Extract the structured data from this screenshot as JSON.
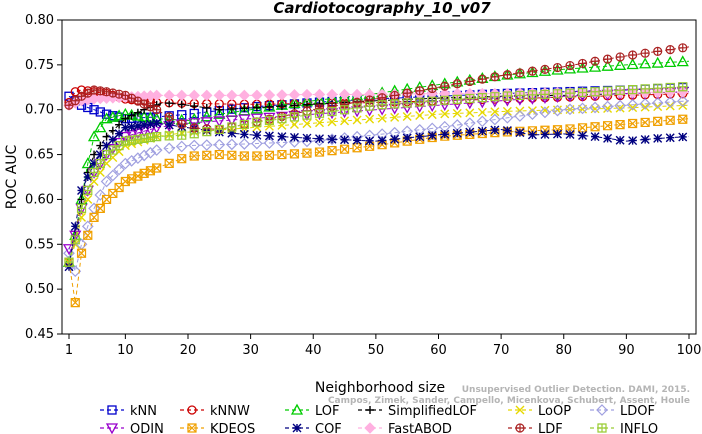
{
  "chart_data": {
    "type": "line",
    "title": "Cardiotocography_10_v07",
    "xlabel": "Neighborhood size",
    "ylabel": "ROC AUC",
    "xlim": [
      1,
      100
    ],
    "ylim": [
      0.45,
      0.8
    ],
    "x_ticks": [
      1,
      10,
      20,
      30,
      40,
      50,
      60,
      70,
      80,
      90,
      100
    ],
    "y_ticks": [
      "0.45",
      "0.50",
      "0.55",
      "0.60",
      "0.65",
      "0.70",
      "0.75",
      "0.80"
    ],
    "credit_line1": "Unsupervised Outlier Detection. DAMI, 2015.",
    "credit_line2": "Campos, Zimek, Sander, Campello, Micenkova, Schubert, Assent, Houle",
    "series": [
      {
        "name": "kNN",
        "color": "#0000cc",
        "marker": "square",
        "dash": "4,3",
        "points": [
          [
            1,
            0.715
          ],
          [
            2,
            0.71
          ],
          [
            3,
            0.705
          ],
          [
            5,
            0.7
          ],
          [
            7,
            0.695
          ],
          [
            10,
            0.69
          ],
          [
            15,
            0.692
          ],
          [
            20,
            0.695
          ],
          [
            30,
            0.703
          ],
          [
            40,
            0.708
          ],
          [
            50,
            0.712
          ],
          [
            60,
            0.715
          ],
          [
            70,
            0.718
          ],
          [
            80,
            0.72
          ],
          [
            90,
            0.722
          ],
          [
            100,
            0.725
          ]
        ]
      },
      {
        "name": "kNNW",
        "color": "#cc0000",
        "marker": "circle",
        "dash": "4,3",
        "points": [
          [
            1,
            0.708
          ],
          [
            2,
            0.72
          ],
          [
            3,
            0.722
          ],
          [
            5,
            0.72
          ],
          [
            7,
            0.718
          ],
          [
            10,
            0.712
          ],
          [
            15,
            0.708
          ],
          [
            20,
            0.707
          ],
          [
            30,
            0.706
          ],
          [
            40,
            0.707
          ],
          [
            50,
            0.708
          ],
          [
            60,
            0.71
          ],
          [
            70,
            0.712
          ],
          [
            80,
            0.714
          ],
          [
            90,
            0.716
          ],
          [
            100,
            0.718
          ]
        ]
      },
      {
        "name": "LOF",
        "color": "#00cc00",
        "marker": "triangle-up",
        "dash": "4,3",
        "points": [
          [
            1,
            0.53
          ],
          [
            2,
            0.56
          ],
          [
            3,
            0.6
          ],
          [
            4,
            0.64
          ],
          [
            5,
            0.67
          ],
          [
            7,
            0.69
          ],
          [
            10,
            0.695
          ],
          [
            15,
            0.69
          ],
          [
            20,
            0.688
          ],
          [
            25,
            0.695
          ],
          [
            30,
            0.7
          ],
          [
            40,
            0.71
          ],
          [
            50,
            0.718
          ],
          [
            60,
            0.728
          ],
          [
            70,
            0.738
          ],
          [
            80,
            0.745
          ],
          [
            90,
            0.75
          ],
          [
            100,
            0.754
          ]
        ]
      },
      {
        "name": "SimplifiedLOF",
        "color": "#000000",
        "marker": "plus",
        "dash": "4,3",
        "points": [
          [
            1,
            0.528
          ],
          [
            2,
            0.56
          ],
          [
            3,
            0.6
          ],
          [
            4,
            0.63
          ],
          [
            5,
            0.65
          ],
          [
            7,
            0.67
          ],
          [
            10,
            0.69
          ],
          [
            13,
            0.7
          ],
          [
            16,
            0.708
          ],
          [
            20,
            0.705
          ],
          [
            25,
            0.7
          ],
          [
            30,
            0.702
          ],
          [
            40,
            0.706
          ],
          [
            50,
            0.71
          ],
          [
            60,
            0.713
          ],
          [
            70,
            0.715
          ],
          [
            80,
            0.716
          ],
          [
            90,
            0.718
          ],
          [
            100,
            0.72
          ]
        ]
      },
      {
        "name": "LoOP",
        "color": "#e6d800",
        "marker": "x",
        "dash": "4,3",
        "points": [
          [
            1,
            0.53
          ],
          [
            2,
            0.55
          ],
          [
            3,
            0.58
          ],
          [
            5,
            0.62
          ],
          [
            7,
            0.64
          ],
          [
            10,
            0.66
          ],
          [
            15,
            0.67
          ],
          [
            20,
            0.675
          ],
          [
            30,
            0.68
          ],
          [
            40,
            0.685
          ],
          [
            50,
            0.69
          ],
          [
            60,
            0.695
          ],
          [
            70,
            0.698
          ],
          [
            80,
            0.7
          ],
          [
            90,
            0.702
          ],
          [
            100,
            0.705
          ]
        ]
      },
      {
        "name": "LDOF",
        "color": "#a0a0e0",
        "marker": "diamond",
        "dash": "4,3",
        "points": [
          [
            1,
            0.54
          ],
          [
            2,
            0.52
          ],
          [
            3,
            0.55
          ],
          [
            5,
            0.59
          ],
          [
            7,
            0.62
          ],
          [
            10,
            0.64
          ],
          [
            15,
            0.655
          ],
          [
            20,
            0.66
          ],
          [
            30,
            0.662
          ],
          [
            40,
            0.665
          ],
          [
            50,
            0.672
          ],
          [
            60,
            0.68
          ],
          [
            70,
            0.69
          ],
          [
            80,
            0.7
          ],
          [
            90,
            0.705
          ],
          [
            100,
            0.71
          ]
        ]
      },
      {
        "name": "ODIN",
        "color": "#9900cc",
        "marker": "triangle-down",
        "dash": "4,3",
        "points": [
          [
            1,
            0.545
          ],
          [
            2,
            0.56
          ],
          [
            3,
            0.59
          ],
          [
            5,
            0.63
          ],
          [
            7,
            0.65
          ],
          [
            10,
            0.67
          ],
          [
            15,
            0.68
          ],
          [
            20,
            0.685
          ],
          [
            30,
            0.69
          ],
          [
            40,
            0.695
          ],
          [
            50,
            0.7
          ],
          [
            60,
            0.705
          ],
          [
            70,
            0.71
          ],
          [
            80,
            0.715
          ],
          [
            90,
            0.718
          ],
          [
            100,
            0.72
          ]
        ]
      },
      {
        "name": "KDEOS",
        "color": "#f0a000",
        "marker": "square-x",
        "dash": "4,3",
        "points": [
          [
            1,
            0.53
          ],
          [
            2,
            0.485
          ],
          [
            3,
            0.54
          ],
          [
            5,
            0.58
          ],
          [
            7,
            0.6
          ],
          [
            10,
            0.62
          ],
          [
            15,
            0.635
          ],
          [
            20,
            0.648
          ],
          [
            25,
            0.65
          ],
          [
            30,
            0.648
          ],
          [
            40,
            0.652
          ],
          [
            50,
            0.66
          ],
          [
            60,
            0.67
          ],
          [
            70,
            0.675
          ],
          [
            80,
            0.678
          ],
          [
            90,
            0.684
          ],
          [
            100,
            0.69
          ]
        ]
      },
      {
        "name": "COF",
        "color": "#000080",
        "marker": "star",
        "dash": "4,3",
        "points": [
          [
            1,
            0.525
          ],
          [
            2,
            0.57
          ],
          [
            3,
            0.61
          ],
          [
            5,
            0.64
          ],
          [
            7,
            0.66
          ],
          [
            10,
            0.68
          ],
          [
            15,
            0.685
          ],
          [
            20,
            0.68
          ],
          [
            25,
            0.675
          ],
          [
            30,
            0.672
          ],
          [
            40,
            0.668
          ],
          [
            50,
            0.665
          ],
          [
            60,
            0.672
          ],
          [
            70,
            0.678
          ],
          [
            75,
            0.672
          ],
          [
            80,
            0.673
          ],
          [
            85,
            0.67
          ],
          [
            90,
            0.665
          ],
          [
            95,
            0.668
          ],
          [
            100,
            0.67
          ]
        ]
      },
      {
        "name": "FastABOD",
        "color": "#ffb0e0",
        "marker": "diamond-filled",
        "dash": "4,3",
        "points": [
          [
            1,
            0.705
          ],
          [
            3,
            0.71
          ],
          [
            5,
            0.712
          ],
          [
            10,
            0.714
          ],
          [
            15,
            0.716
          ],
          [
            20,
            0.716
          ],
          [
            30,
            0.716
          ],
          [
            40,
            0.717
          ],
          [
            50,
            0.717
          ],
          [
            60,
            0.718
          ],
          [
            70,
            0.718
          ],
          [
            80,
            0.719
          ],
          [
            90,
            0.719
          ],
          [
            100,
            0.72
          ]
        ]
      },
      {
        "name": "LDF",
        "color": "#aa2222",
        "marker": "circle-plus",
        "dash": "4,3",
        "points": [
          [
            1,
            0.705
          ],
          [
            3,
            0.715
          ],
          [
            5,
            0.722
          ],
          [
            7,
            0.72
          ],
          [
            10,
            0.716
          ],
          [
            15,
            0.7
          ],
          [
            20,
            0.68
          ],
          [
            25,
            0.678
          ],
          [
            30,
            0.685
          ],
          [
            40,
            0.7
          ],
          [
            50,
            0.712
          ],
          [
            60,
            0.725
          ],
          [
            70,
            0.738
          ],
          [
            80,
            0.748
          ],
          [
            90,
            0.76
          ],
          [
            100,
            0.77
          ]
        ]
      },
      {
        "name": "INFLO",
        "color": "#99cc33",
        "marker": "square-cross",
        "dash": "4,3",
        "points": [
          [
            1,
            0.53
          ],
          [
            2,
            0.555
          ],
          [
            3,
            0.59
          ],
          [
            5,
            0.63
          ],
          [
            7,
            0.65
          ],
          [
            10,
            0.665
          ],
          [
            15,
            0.67
          ],
          [
            20,
            0.672
          ],
          [
            25,
            0.678
          ],
          [
            30,
            0.685
          ],
          [
            40,
            0.695
          ],
          [
            50,
            0.705
          ],
          [
            60,
            0.71
          ],
          [
            70,
            0.715
          ],
          [
            80,
            0.718
          ],
          [
            90,
            0.722
          ],
          [
            100,
            0.726
          ]
        ]
      }
    ],
    "legend": {
      "placement": "bottom",
      "rows": [
        [
          "kNN",
          "kNNW",
          "LOF",
          "SimplifiedLOF",
          "LoOP",
          "LDOF"
        ],
        [
          "ODIN",
          "KDEOS",
          "COF",
          "FastABOD",
          "LDF",
          "INFLO"
        ]
      ]
    }
  }
}
